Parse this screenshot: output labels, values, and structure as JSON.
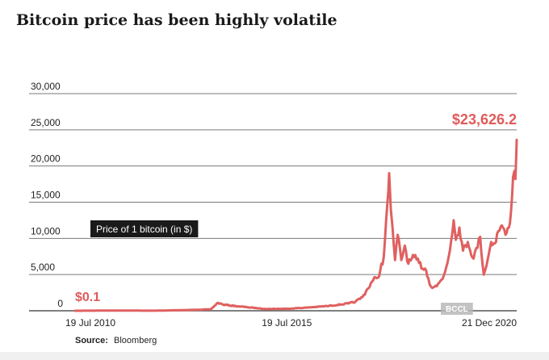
{
  "title": "Bitcoin price has been highly volatile",
  "source": {
    "label": "Source:",
    "name": "Bloomberg"
  },
  "watermark": "BCCL",
  "chart_data": {
    "type": "line",
    "title": "Bitcoin price has been highly volatile",
    "legend_box": "Price of 1 bitcoin (in $)",
    "ylim": [
      0,
      30000
    ],
    "yticks": [
      0,
      5000,
      10000,
      15000,
      20000,
      25000,
      30000
    ],
    "ytick_labels": [
      "0",
      "5,000",
      "10,000",
      "15,000",
      "20,000",
      "25,000",
      "30,000"
    ],
    "xlim": [
      "2010-07-19",
      "2020-12-21"
    ],
    "xtick_labels": [
      {
        "date": "2010-07-19",
        "label": "19 Jul 2010"
      },
      {
        "date": "2015-07-19",
        "label": "19 Jul 2015"
      },
      {
        "date": "2020-12-21",
        "label": "21 Dec 2020"
      }
    ],
    "grid": "horizontal",
    "line_color": "#e06060",
    "annotations": [
      {
        "text": "$0.1",
        "date": "2010-07-19",
        "value": 0.1
      },
      {
        "text": "$23,626.2",
        "date": "2020-12-21",
        "value": 23626.2
      }
    ],
    "series": [
      {
        "x": [
          "2010-07-19",
          "2011-06-10",
          "2012-06-01",
          "2013-03-15",
          "2013-10-01",
          "2013-12-01",
          "2014-01-15",
          "2014-06-01",
          "2015-01-15",
          "2015-07-19",
          "2016-01-01",
          "2016-07-01",
          "2017-01-01",
          "2017-03-01",
          "2017-05-01",
          "2017-06-01",
          "2017-08-01",
          "2017-09-01",
          "2017-10-01",
          "2017-11-01",
          "2017-12-10",
          "2017-12-17",
          "2018-01-01",
          "2018-01-15",
          "2018-02-06",
          "2018-03-01",
          "2018-04-01",
          "2018-05-01",
          "2018-06-01",
          "2018-07-20",
          "2018-09-01",
          "2018-11-01",
          "2018-11-20",
          "2018-12-15",
          "2019-02-01",
          "2019-04-01",
          "2019-05-15",
          "2019-06-26",
          "2019-07-15",
          "2019-08-15",
          "2019-09-15",
          "2019-10-26",
          "2019-12-15",
          "2020-02-10",
          "2020-03-12",
          "2020-04-15",
          "2020-05-15",
          "2020-06-15",
          "2020-07-15",
          "2020-08-15",
          "2020-09-15",
          "2020-10-15",
          "2020-11-01",
          "2020-11-20",
          "2020-12-01",
          "2020-12-10",
          "2020-12-16",
          "2020-12-21"
        ],
        "y": [
          0.1,
          30,
          10,
          100,
          200,
          1100,
          850,
          600,
          250,
          280,
          430,
          650,
          1000,
          1250,
          1900,
          2700,
          4200,
          4500,
          5500,
          7500,
          16500,
          19000,
          14000,
          11500,
          7000,
          10500,
          7000,
          9000,
          6500,
          7400,
          6600,
          5600,
          4500,
          3300,
          3400,
          4800,
          7500,
          12500,
          9800,
          11500,
          8300,
          9500,
          7200,
          10200,
          5000,
          7100,
          9500,
          9300,
          11000,
          11800,
          10500,
          11500,
          13500,
          18500,
          19300,
          18200,
          21000,
          23626.2
        ]
      }
    ]
  }
}
